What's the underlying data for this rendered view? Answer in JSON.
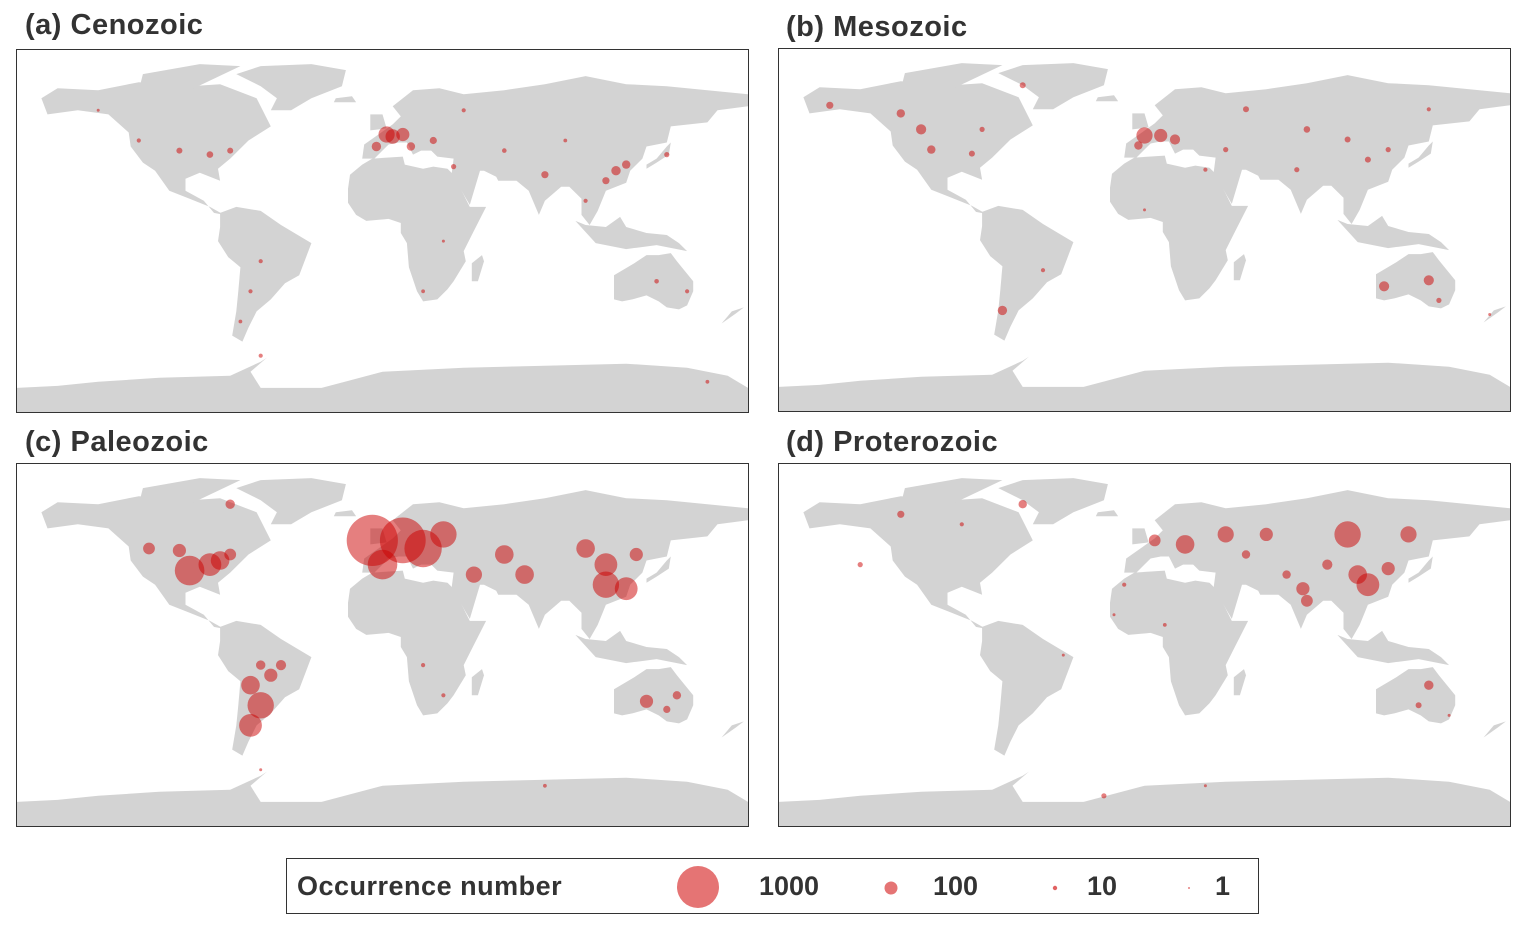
{
  "panels": [
    {
      "id": "a",
      "title": "(a) Cenozoic"
    },
    {
      "id": "b",
      "title": "(b) Mesozoic"
    },
    {
      "id": "c",
      "title": "(c) Paleozoic"
    },
    {
      "id": "d",
      "title": "(d) Proterozoic"
    }
  ],
  "legend": {
    "title": "Occurrence number",
    "entries": [
      {
        "label": "1000",
        "value": 1000
      },
      {
        "label": "100",
        "value": 100
      },
      {
        "label": "10",
        "value": 10
      },
      {
        "label": "1",
        "value": 1
      }
    ]
  },
  "colors": {
    "land": "#d3d3d3",
    "bubble": "#cc0000",
    "bubble_fill": "rgba(204,0,0,0.5)",
    "border": "#333333"
  },
  "chart_data": {
    "type": "scatter",
    "projection": "equirectangular",
    "xlim": [
      -180,
      180
    ],
    "ylim": [
      -90,
      90
    ],
    "size_encoding": "occurrence number",
    "series": [
      {
        "panel": "a",
        "points": [
          [
            2,
            48,
            150
          ],
          [
            5,
            47,
            120
          ],
          [
            10,
            48,
            100
          ],
          [
            -3,
            42,
            50
          ],
          [
            14,
            42,
            40
          ],
          [
            25,
            45,
            30
          ],
          [
            -100,
            40,
            20
          ],
          [
            -85,
            38,
            25
          ],
          [
            -75,
            40,
            20
          ],
          [
            -120,
            45,
            10
          ],
          [
            115,
            30,
            50
          ],
          [
            120,
            33,
            40
          ],
          [
            110,
            25,
            30
          ],
          [
            80,
            28,
            30
          ],
          [
            100,
            15,
            10
          ],
          [
            140,
            38,
            15
          ],
          [
            35,
            32,
            15
          ],
          [
            60,
            40,
            12
          ],
          [
            90,
            45,
            8
          ],
          [
            -60,
            -15,
            10
          ],
          [
            -65,
            -30,
            10
          ],
          [
            -70,
            -45,
            8
          ],
          [
            20,
            -30,
            8
          ],
          [
            30,
            -5,
            5
          ],
          [
            135,
            -25,
            12
          ],
          [
            150,
            -30,
            10
          ],
          [
            -60,
            -62,
            10
          ],
          [
            160,
            -75,
            8
          ],
          [
            -140,
            60,
            5
          ],
          [
            40,
            60,
            10
          ]
        ]
      },
      {
        "panel": "b",
        "points": [
          [
            0,
            47,
            150
          ],
          [
            8,
            47,
            100
          ],
          [
            15,
            45,
            60
          ],
          [
            -3,
            42,
            40
          ],
          [
            -110,
            50,
            60
          ],
          [
            -120,
            58,
            40
          ],
          [
            -105,
            40,
            40
          ],
          [
            -85,
            38,
            20
          ],
          [
            -60,
            72,
            20
          ],
          [
            -155,
            62,
            30
          ],
          [
            -80,
            50,
            15
          ],
          [
            80,
            50,
            25
          ],
          [
            100,
            45,
            20
          ],
          [
            110,
            35,
            20
          ],
          [
            120,
            40,
            15
          ],
          [
            75,
            30,
            15
          ],
          [
            40,
            40,
            15
          ],
          [
            30,
            30,
            10
          ],
          [
            -70,
            -40,
            50
          ],
          [
            -50,
            -20,
            10
          ],
          [
            140,
            -25,
            60
          ],
          [
            118,
            -28,
            60
          ],
          [
            145,
            -35,
            15
          ],
          [
            170,
            -42,
            5
          ],
          [
            50,
            60,
            20
          ],
          [
            140,
            60,
            10
          ],
          [
            0,
            10,
            5
          ]
        ]
      },
      {
        "panel": "c",
        "points": [
          [
            -5,
            52,
            1500
          ],
          [
            10,
            52,
            1200
          ],
          [
            20,
            48,
            800
          ],
          [
            0,
            40,
            500
          ],
          [
            30,
            55,
            400
          ],
          [
            60,
            45,
            200
          ],
          [
            45,
            35,
            150
          ],
          [
            70,
            35,
            200
          ],
          [
            110,
            30,
            400
          ],
          [
            120,
            28,
            300
          ],
          [
            110,
            40,
            300
          ],
          [
            100,
            48,
            200
          ],
          [
            125,
            45,
            100
          ],
          [
            -95,
            37,
            500
          ],
          [
            -85,
            40,
            300
          ],
          [
            -80,
            42,
            200
          ],
          [
            -100,
            47,
            100
          ],
          [
            -75,
            45,
            80
          ],
          [
            -115,
            48,
            80
          ],
          [
            -60,
            -30,
            400
          ],
          [
            -65,
            -40,
            300
          ],
          [
            -65,
            -20,
            200
          ],
          [
            -55,
            -15,
            100
          ],
          [
            -50,
            -10,
            60
          ],
          [
            -60,
            -10,
            50
          ],
          [
            130,
            -28,
            100
          ],
          [
            145,
            -25,
            40
          ],
          [
            140,
            -32,
            30
          ],
          [
            -75,
            70,
            50
          ],
          [
            30,
            -25,
            10
          ],
          [
            20,
            -10,
            10
          ],
          [
            -60,
            -62,
            5
          ],
          [
            80,
            -70,
            8
          ]
        ]
      },
      {
        "panel": "d",
        "points": [
          [
            5,
            52,
            80
          ],
          [
            20,
            50,
            200
          ],
          [
            40,
            55,
            150
          ],
          [
            60,
            55,
            100
          ],
          [
            100,
            55,
            400
          ],
          [
            130,
            55,
            150
          ],
          [
            110,
            30,
            300
          ],
          [
            105,
            35,
            200
          ],
          [
            120,
            38,
            100
          ],
          [
            90,
            40,
            60
          ],
          [
            80,
            22,
            80
          ],
          [
            78,
            28,
            100
          ],
          [
            70,
            35,
            40
          ],
          [
            50,
            45,
            40
          ],
          [
            -120,
            65,
            30
          ],
          [
            -90,
            60,
            10
          ],
          [
            -140,
            40,
            15
          ],
          [
            -10,
            30,
            10
          ],
          [
            10,
            10,
            8
          ],
          [
            -15,
            15,
            5
          ],
          [
            -60,
            70,
            40
          ],
          [
            140,
            -20,
            50
          ],
          [
            135,
            -30,
            20
          ],
          [
            150,
            -35,
            5
          ],
          [
            -40,
            -5,
            5
          ],
          [
            -20,
            -75,
            15
          ],
          [
            30,
            -70,
            5
          ]
        ]
      }
    ]
  }
}
